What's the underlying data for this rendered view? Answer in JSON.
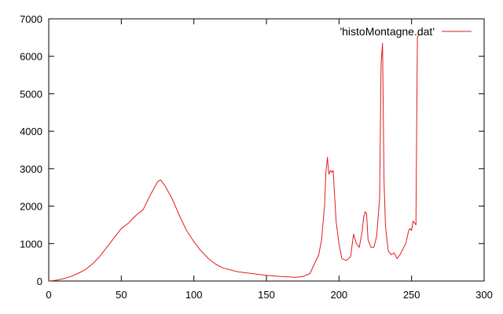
{
  "chart_data": {
    "type": "line",
    "title": "",
    "xlabel": "",
    "ylabel": "",
    "xlim": [
      0,
      300
    ],
    "ylim": [
      0,
      7000
    ],
    "xticks": [
      0,
      50,
      100,
      150,
      200,
      250,
      300
    ],
    "yticks": [
      0,
      1000,
      2000,
      3000,
      4000,
      5000,
      6000,
      7000
    ],
    "grid": false,
    "legend_position": "top-right",
    "series": [
      {
        "name": "'histoMontagne.dat'",
        "color": "#e41a1c",
        "x": [
          0,
          5,
          10,
          15,
          20,
          25,
          30,
          35,
          40,
          45,
          50,
          55,
          60,
          65,
          70,
          75,
          77,
          80,
          85,
          90,
          95,
          100,
          105,
          110,
          115,
          120,
          130,
          140,
          150,
          160,
          170,
          175,
          180,
          183,
          186,
          188,
          190,
          191,
          192,
          193,
          194,
          195,
          196,
          198,
          200,
          202,
          205,
          208,
          210,
          212,
          214,
          216,
          217,
          218,
          219,
          220,
          222,
          224,
          226,
          228,
          229,
          230,
          231,
          232,
          233,
          234,
          236,
          238,
          240,
          242,
          244,
          246,
          248,
          249,
          250,
          251,
          252,
          253,
          254,
          255
        ],
        "y": [
          0,
          20,
          60,
          120,
          200,
          300,
          450,
          650,
          900,
          1150,
          1400,
          1550,
          1750,
          1900,
          2300,
          2650,
          2700,
          2550,
          2200,
          1750,
          1350,
          1050,
          800,
          600,
          450,
          350,
          250,
          200,
          150,
          120,
          100,
          120,
          200,
          450,
          700,
          1100,
          2000,
          2900,
          3300,
          2850,
          2950,
          2900,
          2950,
          1600,
          1000,
          600,
          550,
          650,
          1250,
          1000,
          900,
          1350,
          1700,
          1850,
          1800,
          1100,
          900,
          900,
          1200,
          2200,
          5800,
          6350,
          2700,
          1500,
          1100,
          800,
          700,
          750,
          600,
          700,
          850,
          1000,
          1350,
          1400,
          1350,
          1600,
          1550,
          1500,
          6500,
          6600
        ]
      }
    ]
  }
}
